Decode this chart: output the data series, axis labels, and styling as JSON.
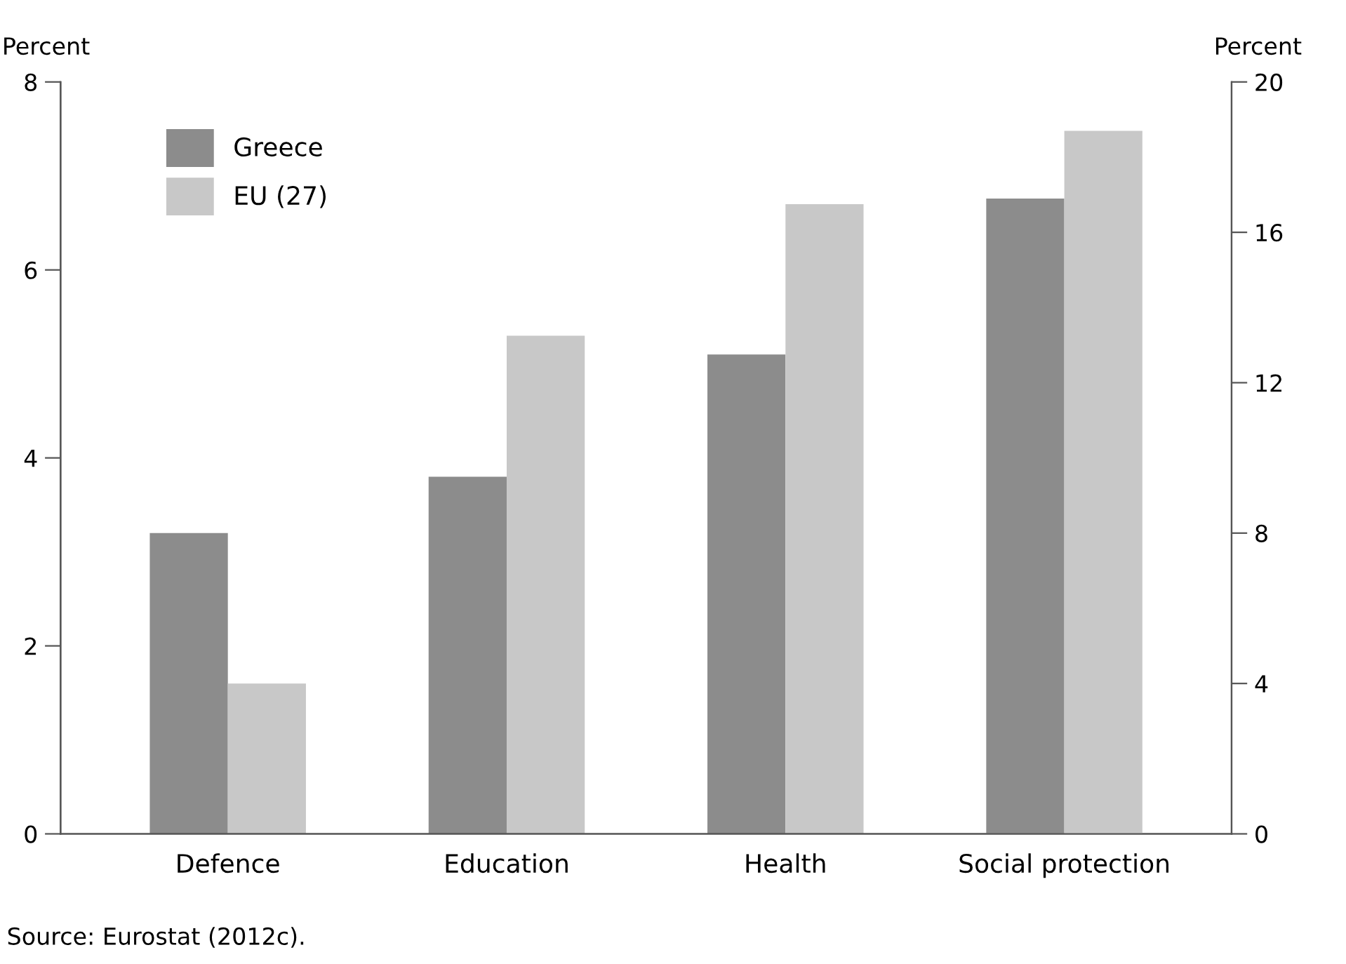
{
  "chart_data": {
    "type": "bar",
    "categories": [
      "Defence",
      "Education",
      "Health",
      "Social protection"
    ],
    "ylabel": "Percent",
    "y2label": "Percent",
    "series": [
      {
        "name": "Greece",
        "color": "#8c8c8c",
        "values": [
          3.2,
          3.8,
          5.1,
          null
        ]
      },
      {
        "name": "EU (27)",
        "color": "#c8c8c8",
        "values": [
          1.6,
          5.3,
          6.7,
          null
        ]
      },
      {
        "color": "#8c8c8c",
        "axis": "y2",
        "values": [
          null,
          null,
          null,
          16.9
        ]
      },
      {
        "color": "#c8c8c8",
        "axis": "y2",
        "values": [
          null,
          null,
          null,
          18.7
        ]
      }
    ],
    "ylim": [
      0,
      8
    ],
    "yticks": [
      0,
      2,
      4,
      6,
      8
    ],
    "y2lim": [
      0,
      20
    ],
    "y2ticks": [
      0,
      4,
      8,
      12,
      16,
      20
    ],
    "grid": false,
    "legend": "top left",
    "annotations": [
      "Source: Eurostat (2012c)."
    ]
  }
}
